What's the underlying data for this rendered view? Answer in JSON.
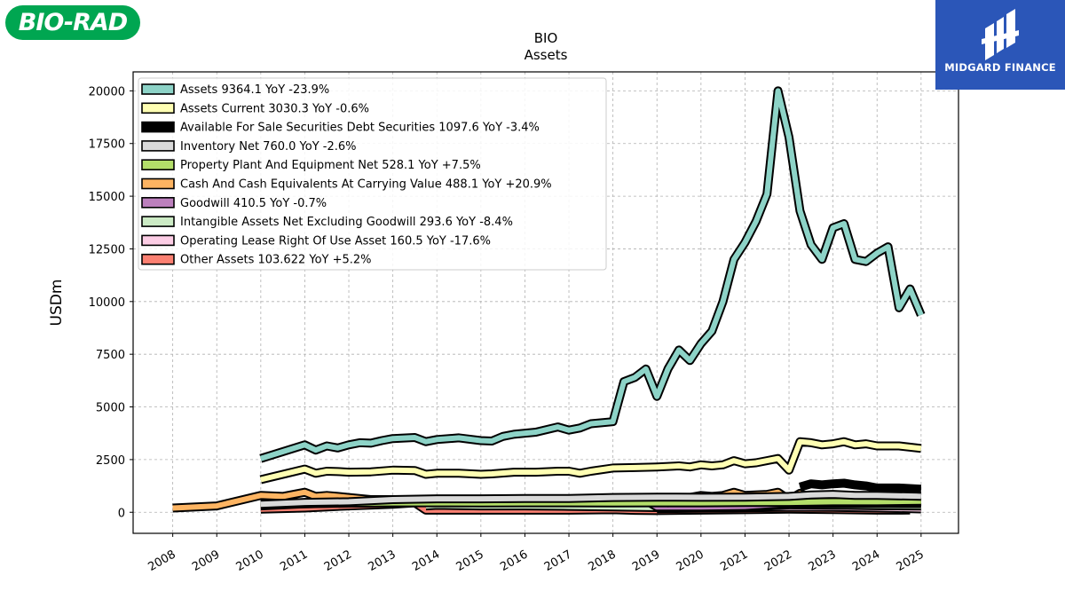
{
  "logos": {
    "left_text": "BIO-RAD",
    "right_text": "MIDGARD FINANCE",
    "colors": {
      "bio_rad": "#00a651",
      "midgard": "#2b56b8"
    }
  },
  "chart_data": {
    "type": "line",
    "title": "BIO",
    "subtitle": "Assets",
    "xlabel": "",
    "ylabel": "USDm",
    "xlim": [
      2007.1,
      2025.85
    ],
    "ylim": [
      -1000,
      20900
    ],
    "grid": true,
    "legend_position": "top-left",
    "x_ticks": [
      "2008",
      "2009",
      "2010",
      "2011",
      "2012",
      "2013",
      "2014",
      "2015",
      "2016",
      "2017",
      "2018",
      "2019",
      "2020",
      "2021",
      "2022",
      "2023",
      "2024",
      "2025"
    ],
    "y_ticks": [
      "0",
      "2500",
      "5000",
      "7500",
      "10000",
      "12500",
      "15000",
      "17500",
      "20000"
    ],
    "series": [
      {
        "name": "Assets  9364.1 YoY -23.9%",
        "color": "#8dd3c7",
        "points": [
          [
            2010.0,
            2550
          ],
          [
            2011.0,
            3200
          ],
          [
            2011.25,
            2950
          ],
          [
            2011.5,
            3150
          ],
          [
            2011.75,
            3050
          ],
          [
            2012.0,
            3200
          ],
          [
            2012.25,
            3300
          ],
          [
            2012.5,
            3280
          ],
          [
            2012.75,
            3400
          ],
          [
            2013.0,
            3500
          ],
          [
            2013.5,
            3550
          ],
          [
            2013.75,
            3350
          ],
          [
            2014.0,
            3450
          ],
          [
            2014.5,
            3530
          ],
          [
            2015.0,
            3400
          ],
          [
            2015.25,
            3380
          ],
          [
            2015.5,
            3600
          ],
          [
            2015.75,
            3700
          ],
          [
            2016.25,
            3800
          ],
          [
            2016.75,
            4050
          ],
          [
            2017.0,
            3900
          ],
          [
            2017.25,
            4000
          ],
          [
            2017.5,
            4200
          ],
          [
            2018.0,
            4300
          ],
          [
            2018.25,
            6200
          ],
          [
            2018.5,
            6400
          ],
          [
            2018.75,
            6800
          ],
          [
            2019.0,
            5500
          ],
          [
            2019.25,
            6800
          ],
          [
            2019.5,
            7700
          ],
          [
            2019.75,
            7200
          ],
          [
            2020.0,
            8000
          ],
          [
            2020.25,
            8600
          ],
          [
            2020.5,
            10000
          ],
          [
            2020.75,
            12000
          ],
          [
            2021.0,
            12800
          ],
          [
            2021.25,
            13800
          ],
          [
            2021.5,
            15100
          ],
          [
            2021.75,
            20000
          ],
          [
            2022.0,
            17800
          ],
          [
            2022.25,
            14300
          ],
          [
            2022.5,
            12700
          ],
          [
            2022.75,
            12000
          ],
          [
            2023.0,
            13500
          ],
          [
            2023.25,
            13700
          ],
          [
            2023.5,
            12000
          ],
          [
            2023.75,
            11900
          ],
          [
            2024.0,
            12300
          ],
          [
            2024.25,
            12600
          ],
          [
            2024.5,
            9700
          ],
          [
            2024.75,
            10600
          ],
          [
            2025.0,
            9364
          ]
        ]
      },
      {
        "name": "Assets Current  3030.3 YoY -0.6%",
        "color": "#ffffb3",
        "points": [
          [
            2010.0,
            1550
          ],
          [
            2011.0,
            2050
          ],
          [
            2011.25,
            1850
          ],
          [
            2011.5,
            1950
          ],
          [
            2011.75,
            1930
          ],
          [
            2012.0,
            1900
          ],
          [
            2012.5,
            1920
          ],
          [
            2013.0,
            2000
          ],
          [
            2013.5,
            1980
          ],
          [
            2013.75,
            1800
          ],
          [
            2014.0,
            1850
          ],
          [
            2014.5,
            1850
          ],
          [
            2015.0,
            1800
          ],
          [
            2015.25,
            1820
          ],
          [
            2015.75,
            1900
          ],
          [
            2016.25,
            1900
          ],
          [
            2016.75,
            1950
          ],
          [
            2017.0,
            1950
          ],
          [
            2017.25,
            1850
          ],
          [
            2017.5,
            1950
          ],
          [
            2018.0,
            2100
          ],
          [
            2018.5,
            2120
          ],
          [
            2019.0,
            2150
          ],
          [
            2019.5,
            2200
          ],
          [
            2019.75,
            2150
          ],
          [
            2020.0,
            2250
          ],
          [
            2020.25,
            2200
          ],
          [
            2020.5,
            2250
          ],
          [
            2020.75,
            2450
          ],
          [
            2021.0,
            2300
          ],
          [
            2021.25,
            2350
          ],
          [
            2021.5,
            2450
          ],
          [
            2021.75,
            2550
          ],
          [
            2022.0,
            2000
          ],
          [
            2022.25,
            3350
          ],
          [
            2022.5,
            3300
          ],
          [
            2022.75,
            3200
          ],
          [
            2023.0,
            3250
          ],
          [
            2023.25,
            3350
          ],
          [
            2023.5,
            3200
          ],
          [
            2023.75,
            3250
          ],
          [
            2024.0,
            3150
          ],
          [
            2024.5,
            3150
          ],
          [
            2025.0,
            3030
          ]
        ]
      },
      {
        "name": "Available For Sale Securities Debt Securities  1097.6 YoY -3.4%",
        "color": "#000000",
        "points": [
          [
            2022.25,
            1200
          ],
          [
            2022.5,
            1350
          ],
          [
            2022.75,
            1300
          ],
          [
            2023.0,
            1350
          ],
          [
            2023.25,
            1380
          ],
          [
            2023.5,
            1300
          ],
          [
            2023.75,
            1250
          ],
          [
            2024.0,
            1150
          ],
          [
            2024.5,
            1150
          ],
          [
            2025.0,
            1098
          ]
        ]
      },
      {
        "name": "Inventory Net  760.0 YoY -2.6%",
        "color": "#d9d9d9",
        "points": [
          [
            2010.0,
            380
          ],
          [
            2011.0,
            470
          ],
          [
            2012.0,
            500
          ],
          [
            2013.0,
            600
          ],
          [
            2014.0,
            640
          ],
          [
            2015.0,
            640
          ],
          [
            2016.0,
            650
          ],
          [
            2017.0,
            650
          ],
          [
            2018.0,
            700
          ],
          [
            2019.0,
            720
          ],
          [
            2020.0,
            710
          ],
          [
            2021.0,
            720
          ],
          [
            2022.0,
            750
          ],
          [
            2022.5,
            820
          ],
          [
            2023.0,
            850
          ],
          [
            2023.5,
            800
          ],
          [
            2024.0,
            800
          ],
          [
            2025.0,
            760
          ]
        ]
      },
      {
        "name": "Property Plant And Equipment Net  528.1 YoY +7.5%",
        "color": "#b3de69",
        "points": [
          [
            2010.0,
            380
          ],
          [
            2011.0,
            400
          ],
          [
            2012.0,
            430
          ],
          [
            2013.0,
            450
          ],
          [
            2014.0,
            450
          ],
          [
            2015.0,
            440
          ],
          [
            2016.0,
            450
          ],
          [
            2017.0,
            450
          ],
          [
            2018.0,
            440
          ],
          [
            2019.0,
            450
          ],
          [
            2020.0,
            450
          ],
          [
            2021.0,
            460
          ],
          [
            2022.0,
            470
          ],
          [
            2023.0,
            500
          ],
          [
            2024.0,
            500
          ],
          [
            2025.0,
            528
          ]
        ]
      },
      {
        "name": "Cash And Cash Equivalents At Carrying Value  488.1 YoY +20.9%",
        "color": "#fdb462",
        "points": [
          [
            2008.0,
            200
          ],
          [
            2009.0,
            300
          ],
          [
            2010.0,
            800
          ],
          [
            2010.5,
            750
          ],
          [
            2011.0,
            950
          ],
          [
            2011.25,
            750
          ],
          [
            2011.5,
            800
          ],
          [
            2011.75,
            750
          ],
          [
            2012.0,
            700
          ],
          [
            2012.5,
            600
          ],
          [
            2013.0,
            600
          ],
          [
            2014.0,
            600
          ],
          [
            2015.0,
            600
          ],
          [
            2016.0,
            600
          ],
          [
            2017.0,
            600
          ],
          [
            2018.0,
            600
          ],
          [
            2018.5,
            620
          ],
          [
            2019.0,
            600
          ],
          [
            2019.25,
            450
          ],
          [
            2019.5,
            650
          ],
          [
            2019.75,
            700
          ],
          [
            2020.0,
            800
          ],
          [
            2020.25,
            750
          ],
          [
            2020.5,
            800
          ],
          [
            2020.75,
            950
          ],
          [
            2021.0,
            800
          ],
          [
            2021.5,
            850
          ],
          [
            2021.75,
            950
          ],
          [
            2022.0,
            600
          ],
          [
            2022.25,
            900
          ],
          [
            2022.5,
            650
          ],
          [
            2022.75,
            500
          ],
          [
            2023.0,
            500
          ],
          [
            2024.0,
            450
          ],
          [
            2025.0,
            488
          ]
        ]
      },
      {
        "name": "Goodwill  410.5 YoY -0.7%",
        "color": "#bc80bd",
        "points": [
          [
            2010.0,
            300
          ],
          [
            2011.0,
            400
          ],
          [
            2012.0,
            450
          ],
          [
            2013.0,
            550
          ],
          [
            2013.75,
            500
          ],
          [
            2014.0,
            550
          ],
          [
            2015.0,
            520
          ],
          [
            2016.0,
            530
          ],
          [
            2017.0,
            550
          ],
          [
            2018.0,
            550
          ],
          [
            2018.75,
            560
          ],
          [
            2019.0,
            250
          ],
          [
            2020.0,
            250
          ],
          [
            2021.0,
            280
          ],
          [
            2022.0,
            420
          ],
          [
            2023.0,
            420
          ],
          [
            2024.0,
            415
          ],
          [
            2025.0,
            410
          ]
        ]
      },
      {
        "name": "Intangible Assets Net Excluding Goodwill  293.6 YoY -8.4%",
        "color": "#ccebc5",
        "points": [
          [
            2013.75,
            300
          ],
          [
            2014.0,
            330
          ],
          [
            2015.0,
            300
          ],
          [
            2016.0,
            300
          ],
          [
            2017.0,
            280
          ],
          [
            2018.0,
            250
          ],
          [
            2019.0,
            220
          ],
          [
            2020.0,
            220
          ],
          [
            2021.0,
            240
          ],
          [
            2022.0,
            350
          ],
          [
            2023.0,
            340
          ],
          [
            2024.0,
            310
          ],
          [
            2025.0,
            294
          ]
        ]
      },
      {
        "name": "Operating Lease Right Of Use Asset  160.5 YoY -17.6%",
        "color": "#fccde5",
        "points": [
          [
            2019.0,
            170
          ],
          [
            2020.0,
            190
          ],
          [
            2021.0,
            210
          ],
          [
            2022.0,
            240
          ],
          [
            2023.0,
            230
          ],
          [
            2024.0,
            200
          ],
          [
            2025.0,
            160
          ]
        ]
      },
      {
        "name": "Other Assets  103.622 YoY +5.2%",
        "color": "#fb8072",
        "points": [
          [
            2010.0,
            150
          ],
          [
            2011.0,
            200
          ],
          [
            2012.0,
            300
          ],
          [
            2013.0,
            380
          ],
          [
            2013.5,
            450
          ],
          [
            2013.75,
            100
          ],
          [
            2014.0,
            100
          ],
          [
            2015.0,
            100
          ],
          [
            2016.0,
            100
          ],
          [
            2017.0,
            100
          ],
          [
            2018.0,
            120
          ],
          [
            2018.5,
            90
          ],
          [
            2019.0,
            80
          ],
          [
            2020.0,
            100
          ],
          [
            2021.0,
            120
          ],
          [
            2022.0,
            150
          ],
          [
            2023.0,
            130
          ],
          [
            2024.0,
            100
          ],
          [
            2024.75,
            104
          ]
        ]
      }
    ]
  }
}
